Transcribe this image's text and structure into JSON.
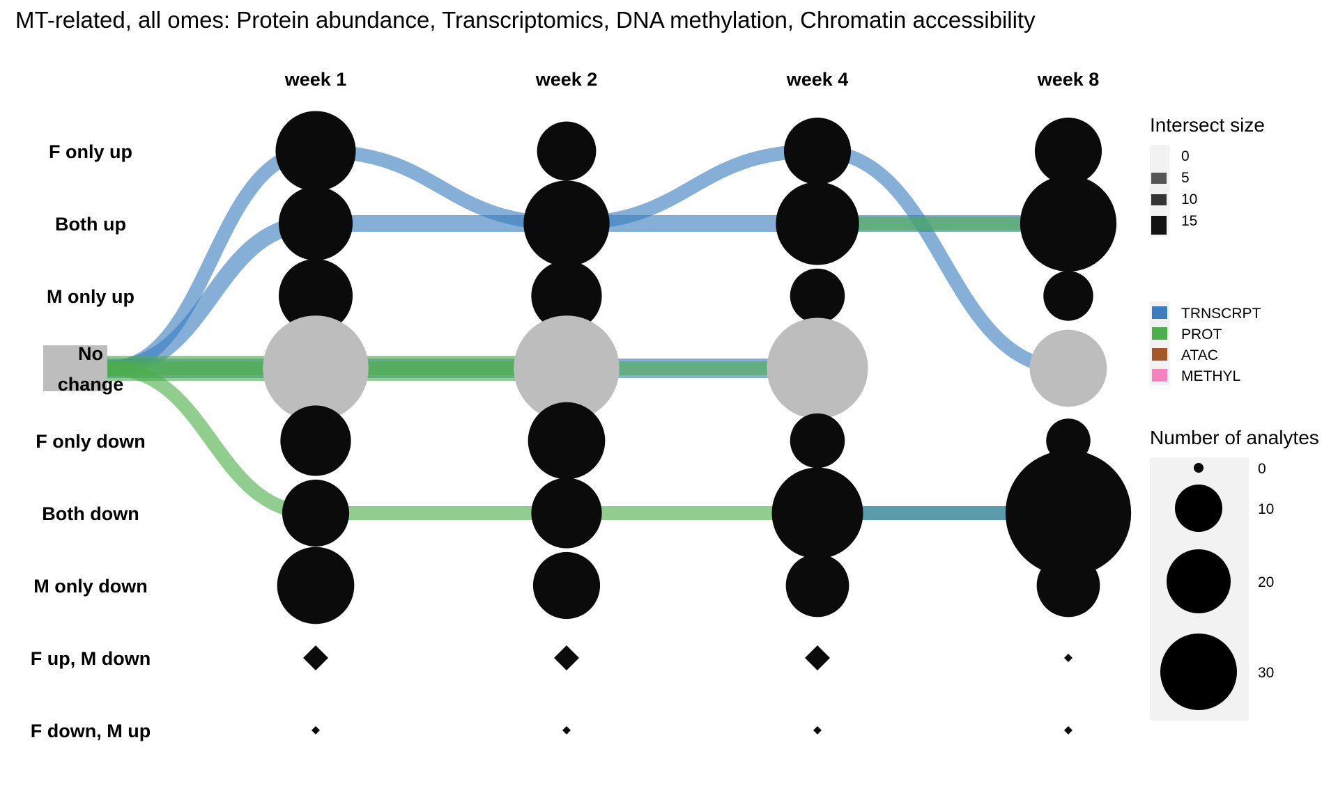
{
  "chart_data": {
    "type": "alluvial-dot",
    "title": "MT-related, all omes: Protein abundance, Transcriptomics, DNA methylation, Chromatin accessibility",
    "timepoints": [
      "week 1",
      "week 2",
      "week 4",
      "week 8"
    ],
    "start_node": "No\nchange",
    "states": [
      "F only up",
      "Both up",
      "M only up",
      "No change",
      "F only down",
      "Both down",
      "M only down",
      "F up, M down",
      "F down, M up"
    ],
    "node_counts": {
      "F only up": [
        12,
        6,
        8,
        8
      ],
      "Both up": [
        10,
        14,
        13,
        18
      ],
      "M only up": [
        10,
        9,
        5,
        4
      ],
      "No change": [
        22,
        22,
        20,
        11
      ],
      "F only down": [
        9,
        11,
        5,
        3
      ],
      "Both down": [
        8,
        9,
        16,
        32
      ],
      "M only down": [
        11,
        8,
        7,
        7
      ],
      "F up, M down": [
        0,
        0,
        0,
        0
      ],
      "F down, M up": [
        0,
        0,
        0,
        0
      ]
    },
    "flows": [
      {
        "ome": "TRNSCRPT",
        "path": [
          "No change",
          "F only up",
          "Both up",
          "F only up",
          "No change"
        ],
        "weight": 1
      },
      {
        "ome": "TRNSCRPT",
        "path": [
          "No change",
          "Both up",
          "Both up",
          "Both up",
          "Both up"
        ],
        "weight": 1.5
      },
      {
        "ome": "TRNSCRPT",
        "path": [
          "No change",
          "No change",
          "No change",
          "No change"
        ],
        "weight": 2
      },
      {
        "ome": "PROT",
        "path": [
          "No change",
          "No change",
          "No change"
        ],
        "weight": 3
      },
      {
        "ome": "PROT",
        "path": [
          "No change",
          "No change",
          "No change",
          "No change"
        ],
        "weight": 1
      },
      {
        "ome": "PROT",
        "path": [
          "No change",
          "Both down",
          "Both down",
          "Both down",
          "Both down"
        ],
        "weight": 1
      },
      {
        "ome": "PROT",
        "path": [
          "Both up",
          "Both up"
        ],
        "weight": 1
      },
      {
        "ome": "TRNSCRPT",
        "path": [
          "Both down",
          "Both down"
        ],
        "weight": 1
      }
    ],
    "legend_intersect": {
      "title": "Intersect size",
      "values": [
        0,
        5,
        10,
        15
      ]
    },
    "legend_omes": [
      {
        "name": "TRNSCRPT",
        "color": "#3a7ebf"
      },
      {
        "name": "PROT",
        "color": "#4daf4a"
      },
      {
        "name": "ATAC",
        "color": "#a65628"
      },
      {
        "name": "METHYL",
        "color": "#f781bf"
      }
    ],
    "legend_size": {
      "title": "Number of analytes",
      "values": [
        0,
        10,
        20,
        30
      ]
    },
    "grid": false
  }
}
